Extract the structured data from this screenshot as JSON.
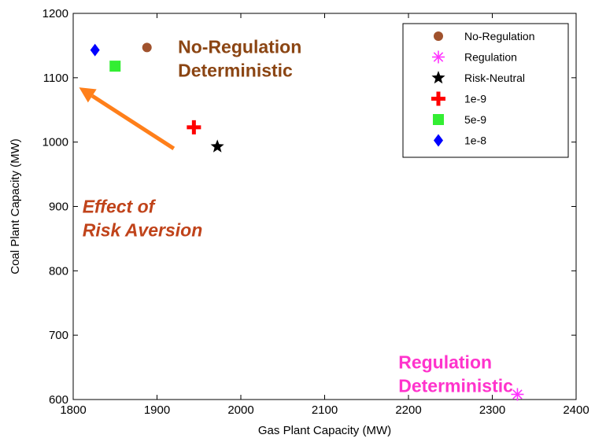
{
  "chart_data": {
    "type": "scatter",
    "xlabel": "Gas Plant Capacity (MW)",
    "ylabel": "Coal Plant Capacity (MW)",
    "xlim": [
      1800,
      2400
    ],
    "ylim": [
      600,
      1200
    ],
    "xticks": [
      1800,
      1900,
      2000,
      2100,
      2200,
      2300,
      2400
    ],
    "yticks": [
      600,
      700,
      800,
      900,
      1000,
      1100,
      1200
    ],
    "grid": false,
    "legend_position": "top-right",
    "series": [
      {
        "name": "No-Regulation",
        "marker": "circle",
        "color": "#a0522d",
        "points": [
          [
            1888,
            1147
          ]
        ]
      },
      {
        "name": "Regulation",
        "marker": "asterisk",
        "color": "#ff33ff",
        "points": [
          [
            2330,
            608
          ]
        ]
      },
      {
        "name": "Risk-Neutral",
        "marker": "star",
        "color": "#000000",
        "points": [
          [
            1972,
            993
          ]
        ]
      },
      {
        "name": "1e-9",
        "marker": "cross",
        "color": "#ff0000",
        "points": [
          [
            1944,
            1023
          ]
        ]
      },
      {
        "name": "5e-9",
        "marker": "square",
        "color": "#33ee33",
        "points": [
          [
            1850,
            1118
          ]
        ]
      },
      {
        "name": "1e-8",
        "marker": "diamond",
        "color": "#0000ff",
        "points": [
          [
            1826,
            1143
          ]
        ]
      }
    ],
    "annotations": [
      {
        "id": "no-reg-det",
        "lines": [
          "No-Regulation",
          "Deterministic"
        ],
        "color": "#8b4513",
        "italic": false,
        "x": 1925,
        "y": 1138
      },
      {
        "id": "effect",
        "lines": [
          "Effect of",
          "Risk Aversion"
        ],
        "color": "#c0431a",
        "italic": true,
        "x": 1811,
        "y": 890
      },
      {
        "id": "reg-det",
        "lines": [
          "Regulation",
          "Deterministic"
        ],
        "color": "#ff33cc",
        "italic": false,
        "x": 2188,
        "y": 648
      }
    ],
    "arrow": {
      "color": "#ff7f1a",
      "from": [
        1920,
        990
      ],
      "to": [
        1807,
        1085
      ]
    }
  }
}
